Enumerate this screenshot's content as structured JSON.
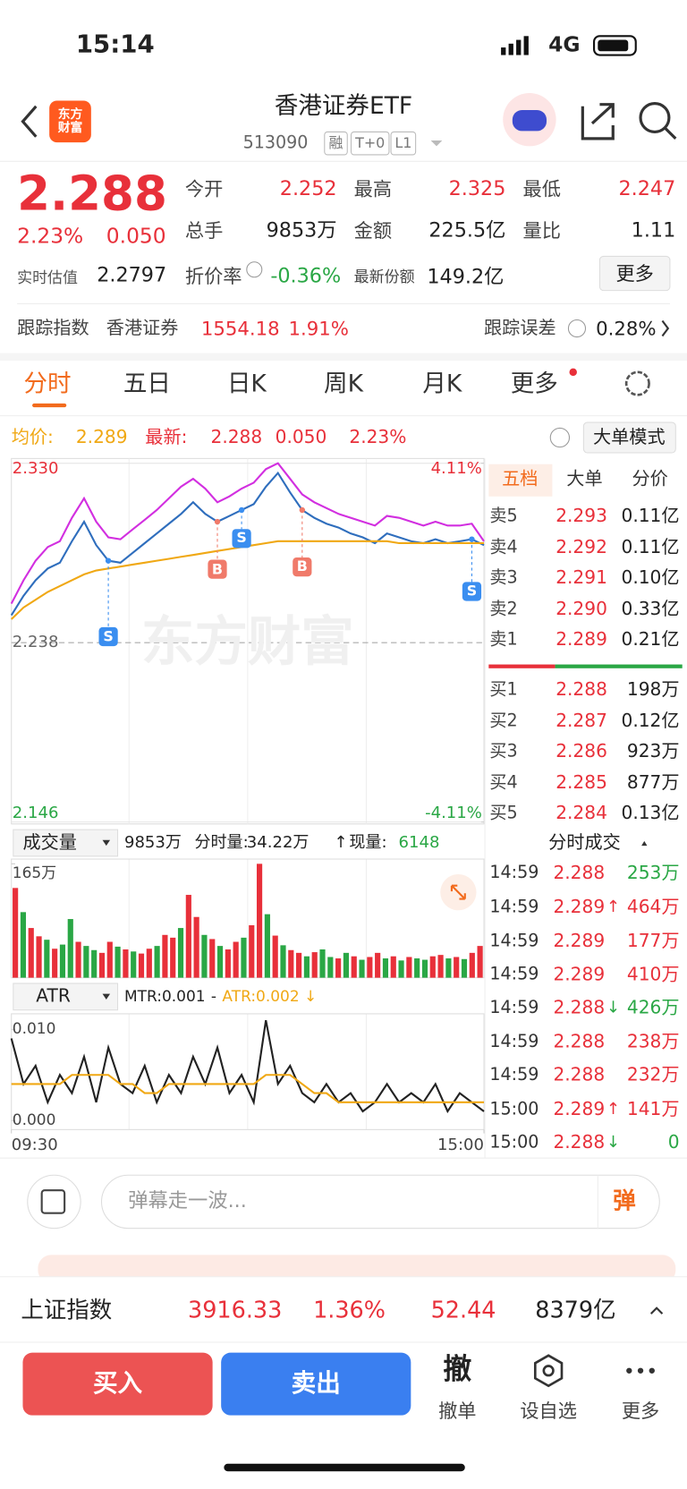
{
  "status_bar": {
    "time": "15:14",
    "network": "4G"
  },
  "header": {
    "logo": "东方财富",
    "title": "香港证券ETF",
    "code": "513090",
    "tags": [
      "融",
      "T+0",
      "L1"
    ]
  },
  "quote": {
    "price": "2.288",
    "change_pct": "2.23%",
    "change": "0.050",
    "est_label": "实时估值",
    "est_value": "2.2797",
    "fields": [
      {
        "label": "今开",
        "value": "2.252"
      },
      {
        "label": "最高",
        "value": "2.325"
      },
      {
        "label": "最低",
        "value": "2.247"
      },
      {
        "label": "总手",
        "value": "9853万"
      },
      {
        "label": "金额",
        "value": "225.5亿"
      },
      {
        "label": "量比",
        "value": "1.11"
      },
      {
        "label": "折价率",
        "value": "-0.36%"
      },
      {
        "label": "最新份额",
        "value": "149.2亿"
      }
    ],
    "more": "更多"
  },
  "tracking": {
    "label": "跟踪指数",
    "index_name": "香港证券",
    "index_value": "1554.18",
    "index_pct": "1.91%",
    "error_label": "跟踪误差",
    "error_value": "0.28%"
  },
  "tabs": [
    "分时",
    "五日",
    "日K",
    "周K",
    "月K",
    "更多"
  ],
  "chart_header": {
    "avg_label": "均价:",
    "avg_value": "2.289",
    "last_label": "最新:",
    "last_value": "2.288",
    "change": "0.050",
    "pct": "2.23%",
    "mode": "大单模式"
  },
  "chart_data": [
    {
      "type": "line",
      "watermark": "东方财富",
      "ylim": [
        2.146,
        2.33
      ],
      "yticks": [
        {
          "value": 2.33,
          "label": "2.330"
        },
        2.238,
        2.146
      ],
      "y2lim": [
        -4.11,
        4.11
      ],
      "y2ticks": [
        {
          "value": 4.11,
          "label": "4.11%"
        },
        {
          "value": -4.11,
          "label": "-4.11%"
        }
      ],
      "grid": true,
      "series": [
        {
          "color": "#d22fe0",
          "values": [
            2.258,
            2.27,
            2.28,
            2.287,
            2.29,
            2.302,
            2.312,
            2.3,
            2.292,
            2.291,
            2.296,
            2.301,
            2.306,
            2.312,
            2.318,
            2.322,
            2.317,
            2.31,
            2.313,
            2.317,
            2.32,
            2.327,
            2.33,
            2.322,
            2.314,
            2.31,
            2.307,
            2.304,
            2.302,
            2.3,
            2.298,
            2.303,
            2.302,
            2.3,
            2.298,
            2.3,
            2.298,
            2.298,
            2.299,
            2.29
          ]
        },
        {
          "color": "#2f6ebd",
          "values": [
            2.252,
            2.262,
            2.27,
            2.276,
            2.279,
            2.29,
            2.3,
            2.288,
            2.28,
            2.279,
            2.284,
            2.289,
            2.294,
            2.299,
            2.304,
            2.31,
            2.304,
            2.3,
            2.303,
            2.306,
            2.309,
            2.318,
            2.325,
            2.315,
            2.306,
            2.302,
            2.299,
            2.297,
            2.294,
            2.292,
            2.289,
            2.294,
            2.292,
            2.29,
            2.289,
            2.291,
            2.289,
            2.29,
            2.291,
            2.288
          ]
        },
        {
          "color": "#f0a814",
          "values": [
            2.25,
            2.256,
            2.26,
            2.264,
            2.267,
            2.27,
            2.273,
            2.275,
            2.276,
            2.277,
            2.278,
            2.279,
            2.28,
            2.281,
            2.282,
            2.283,
            2.284,
            2.285,
            2.286,
            2.287,
            2.288,
            2.289,
            2.29,
            2.29,
            2.29,
            2.29,
            2.29,
            2.29,
            2.29,
            2.29,
            2.29,
            2.29,
            2.289,
            2.289,
            2.289,
            2.289,
            2.289,
            2.289,
            2.289,
            2.289
          ]
        }
      ],
      "trade_markers": [
        {
          "label": "S",
          "x": 8,
          "color": "#3a8ef0"
        },
        {
          "label": "B",
          "x": 17,
          "color": "#f07a6a"
        },
        {
          "label": "S",
          "x": 19,
          "color": "#3a8ef0"
        },
        {
          "label": "B",
          "x": 24,
          "color": "#f07a6a"
        },
        {
          "label": "S",
          "x": 38,
          "color": "#3a8ef0"
        }
      ]
    },
    {
      "type": "bar",
      "title": "成交量",
      "total": "9853万",
      "period_label": "分时量:",
      "period_value": "34.22万",
      "arrow": "↑",
      "current_label": "现量:",
      "current_value": "6148",
      "ylim": [
        0,
        165
      ],
      "yticks": [
        {
          "value": 165,
          "label": "165万"
        }
      ],
      "values": [
        130,
        95,
        72,
        60,
        55,
        42,
        48,
        85,
        52,
        46,
        40,
        36,
        52,
        45,
        41,
        38,
        35,
        42,
        46,
        62,
        58,
        72,
        120,
        88,
        62,
        56,
        46,
        41,
        52,
        58,
        76,
        165,
        92,
        61,
        47,
        40,
        36,
        31,
        37,
        41,
        30,
        28,
        36,
        31,
        26,
        30,
        36,
        28,
        31,
        25,
        30,
        28,
        26,
        31,
        33,
        28,
        30,
        27,
        36,
        46
      ],
      "colors": [
        "#e8303a",
        "#2aa745",
        "#e8303a",
        "#e8303a",
        "#2aa745",
        "#e8303a",
        "#2aa745",
        "#2aa745",
        "#e8303a",
        "#2aa745",
        "#2aa745",
        "#e8303a",
        "#e8303a",
        "#2aa745",
        "#e8303a",
        "#2aa745",
        "#e8303a",
        "#e8303a",
        "#2aa745",
        "#e8303a",
        "#e8303a",
        "#2aa745",
        "#e8303a",
        "#e8303a",
        "#2aa745",
        "#e8303a",
        "#2aa745",
        "#e8303a",
        "#e8303a",
        "#2aa745",
        "#e8303a",
        "#e8303a",
        "#2aa745",
        "#e8303a",
        "#2aa745",
        "#e8303a",
        "#e8303a",
        "#2aa745",
        "#e8303a",
        "#2aa745",
        "#2aa745",
        "#e8303a",
        "#2aa745",
        "#e8303a",
        "#2aa745",
        "#e8303a",
        "#e8303a",
        "#2aa745",
        "#e8303a",
        "#2aa745",
        "#e8303a",
        "#2aa745",
        "#2aa745",
        "#e8303a",
        "#e8303a",
        "#2aa745",
        "#e8303a",
        "#2aa745",
        "#e8303a",
        "#e8303a"
      ]
    },
    {
      "type": "line",
      "title": "ATR",
      "indicators": [
        {
          "label": "MTR:0.001",
          "color": "#222222"
        },
        {
          "label": "-",
          "color": "#222222"
        },
        {
          "label": "ATR:0.002 ↓",
          "color": "#f0a814"
        }
      ],
      "ylim": [
        -0.001,
        0.0115
      ],
      "yticks": [
        {
          "value": 0.01,
          "label": "0.010"
        },
        {
          "value": 0,
          "label": "0.000"
        }
      ],
      "xticks": [
        {
          "value": 0,
          "label": "09:30"
        },
        {
          "value": 39,
          "label": "15:00"
        }
      ],
      "series": [
        {
          "color": "#222222",
          "values": [
            0.009,
            0.004,
            0.006,
            0.002,
            0.005,
            0.003,
            0.007,
            0.002,
            0.008,
            0.004,
            0.003,
            0.006,
            0.002,
            0.005,
            0.003,
            0.007,
            0.004,
            0.008,
            0.003,
            0.005,
            0.002,
            0.011,
            0.004,
            0.006,
            0.003,
            0.002,
            0.004,
            0.002,
            0.003,
            0.001,
            0.002,
            0.004,
            0.002,
            0.003,
            0.002,
            0.004,
            0.001,
            0.003,
            0.002,
            0.001
          ]
        },
        {
          "color": "#f0a814",
          "values": [
            0.004,
            0.004,
            0.004,
            0.004,
            0.004,
            0.005,
            0.005,
            0.005,
            0.005,
            0.004,
            0.004,
            0.003,
            0.003,
            0.004,
            0.004,
            0.004,
            0.004,
            0.004,
            0.004,
            0.004,
            0.004,
            0.005,
            0.005,
            0.005,
            0.004,
            0.003,
            0.003,
            0.002,
            0.002,
            0.002,
            0.002,
            0.002,
            0.002,
            0.002,
            0.002,
            0.002,
            0.002,
            0.002,
            0.002,
            0.002
          ]
        }
      ]
    }
  ],
  "order_book": {
    "tabs": [
      "五档",
      "大单",
      "分价"
    ],
    "sell": [
      {
        "label": "卖5",
        "price": "2.293",
        "volume": "0.11亿"
      },
      {
        "label": "卖4",
        "price": "2.292",
        "volume": "0.11亿"
      },
      {
        "label": "卖3",
        "price": "2.291",
        "volume": "0.10亿"
      },
      {
        "label": "卖2",
        "price": "2.290",
        "volume": "0.33亿"
      },
      {
        "label": "卖1",
        "price": "2.289",
        "volume": "0.21亿"
      }
    ],
    "buy": [
      {
        "label": "买1",
        "price": "2.288",
        "volume": "198万"
      },
      {
        "label": "买2",
        "price": "2.287",
        "volume": "0.12亿"
      },
      {
        "label": "买3",
        "price": "2.286",
        "volume": "923万"
      },
      {
        "label": "买4",
        "price": "2.285",
        "volume": "877万"
      },
      {
        "label": "买5",
        "price": "2.284",
        "volume": "0.13亿"
      }
    ]
  },
  "trades": {
    "title": "分时成交",
    "rows": [
      {
        "time": "14:59",
        "price": "2.288",
        "volume": "253万",
        "color": "#2aa745"
      },
      {
        "time": "14:59",
        "price": "2.289",
        "direction": "↑",
        "volume": "464万",
        "color": "#e8303a"
      },
      {
        "time": "14:59",
        "price": "2.289",
        "volume": "177万",
        "color": "#e8303a"
      },
      {
        "time": "14:59",
        "price": "2.289",
        "volume": "410万",
        "color": "#e8303a"
      },
      {
        "time": "14:59",
        "price": "2.288",
        "direction": "↓",
        "volume": "426万",
        "color": "#2aa745"
      },
      {
        "time": "14:59",
        "price": "2.288",
        "volume": "238万",
        "color": "#e8303a"
      },
      {
        "time": "14:59",
        "price": "2.288",
        "volume": "232万",
        "color": "#e8303a"
      },
      {
        "time": "15:00",
        "price": "2.289",
        "direction": "↑",
        "volume": "141万",
        "color": "#e8303a"
      },
      {
        "time": "15:00",
        "price": "2.288",
        "direction": "↓",
        "volume": "0",
        "color": "#2aa745"
      }
    ]
  },
  "comment_bar": {
    "placeholder": "弹幕走一波...",
    "button": "弹"
  },
  "index_bar": {
    "name": "上证指数",
    "value": "3916.33",
    "pct": "1.36%",
    "change": "52.44",
    "amount": "8379亿"
  },
  "actions": {
    "buy": "买入",
    "sell": "卖出",
    "cancel_icon": "撤",
    "cancel": "撤单",
    "watch": "设自选",
    "more": "更多"
  }
}
